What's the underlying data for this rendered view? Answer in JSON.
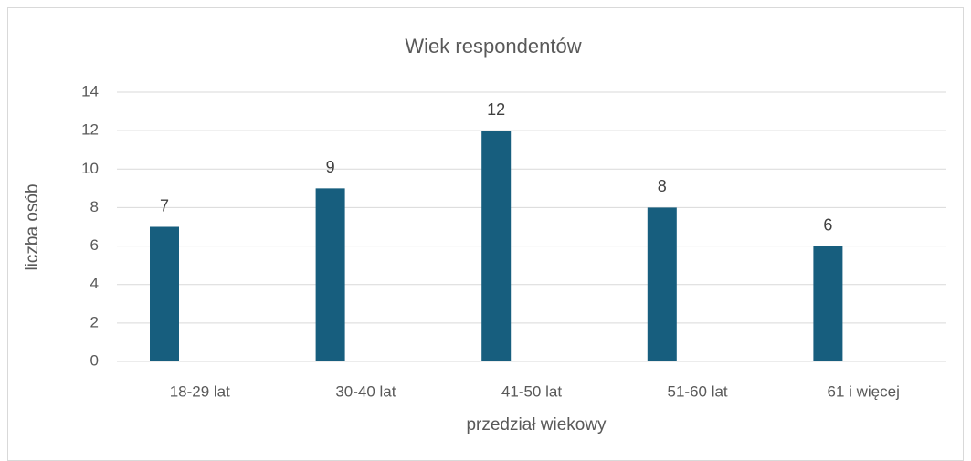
{
  "chart_data": {
    "type": "bar",
    "title": "Wiek respondentów",
    "x_label": "przedział wiekowy",
    "y_label": "liczba osób",
    "categories": [
      "18-29 lat",
      "30-40 lat",
      "41-50 lat",
      "51-60 lat",
      "61 i więcej"
    ],
    "values": [
      7,
      9,
      12,
      8,
      6
    ],
    "color": "#175e7e",
    "ylim": [
      0,
      14
    ],
    "yticks": [
      0,
      2,
      4,
      6,
      8,
      10,
      12,
      14
    ],
    "grid": true,
    "data_labels": true
  }
}
